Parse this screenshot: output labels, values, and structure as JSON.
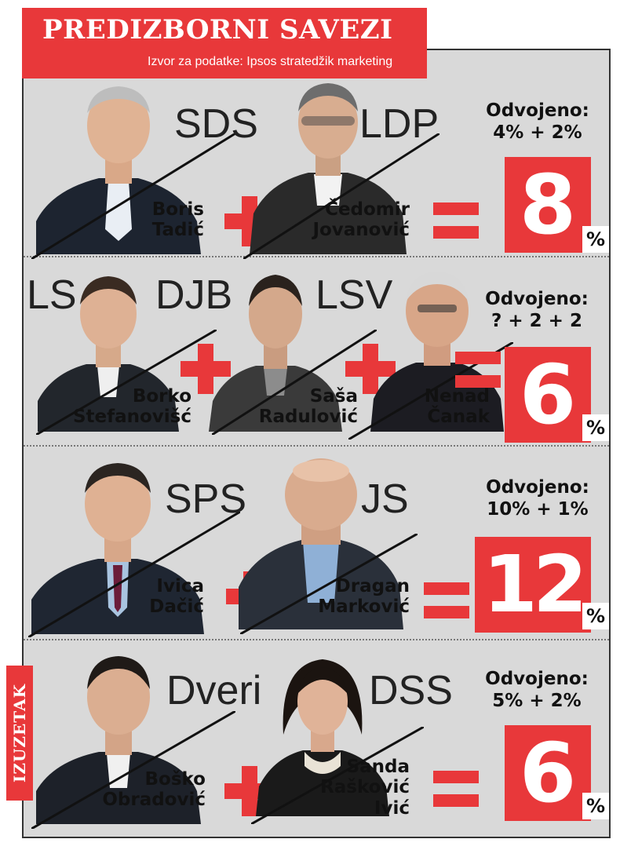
{
  "header": {
    "title": "PREDIZBORNI SAVEZI",
    "source": "Izvor za podatke: Ipsos stratedžik marketing"
  },
  "colors": {
    "accent": "#e8383a",
    "panel": "#d9d9d9"
  },
  "exception_label": "IZUZETAK",
  "alliances": [
    {
      "parties": [
        "SDS",
        "LDP"
      ],
      "leaders": [
        {
          "line1": "Boris",
          "line2": "Tadić",
          "line3": ""
        },
        {
          "line1": "Čedomir",
          "line2": "Jovanović",
          "line3": ""
        }
      ],
      "separately_label": "Odvojeno:",
      "separately_values": "4% + 2%",
      "combined": "8",
      "percent_sign": "%"
    },
    {
      "parties": [
        "LS",
        "DJB",
        "LSV"
      ],
      "leaders": [
        {
          "line1": "Borko",
          "line2": "Stefanovišć",
          "line3": ""
        },
        {
          "line1": "Saša",
          "line2": "Radulović",
          "line3": ""
        },
        {
          "line1": "Nenad",
          "line2": "Čanak",
          "line3": ""
        }
      ],
      "separately_label": "Odvojeno:",
      "separately_values": "? + 2 + 2",
      "combined": "6",
      "percent_sign": "%"
    },
    {
      "parties": [
        "SPS",
        "JS"
      ],
      "leaders": [
        {
          "line1": "Ivica",
          "line2": "Dačić",
          "line3": ""
        },
        {
          "line1": "Dragan",
          "line2": "Marković",
          "line3": ""
        }
      ],
      "separately_label": "Odvojeno:",
      "separately_values": "10% + 1%",
      "combined": "12",
      "percent_sign": "%"
    },
    {
      "parties": [
        "Dveri",
        "DSS"
      ],
      "leaders": [
        {
          "line1": "Boško",
          "line2": "Obradović",
          "line3": ""
        },
        {
          "line1": "Sanda",
          "line2": "Rašković",
          "line3": "Ivić"
        }
      ],
      "separately_label": "Odvojeno:",
      "separately_values": "5% + 2%",
      "combined": "6",
      "percent_sign": "%"
    }
  ]
}
